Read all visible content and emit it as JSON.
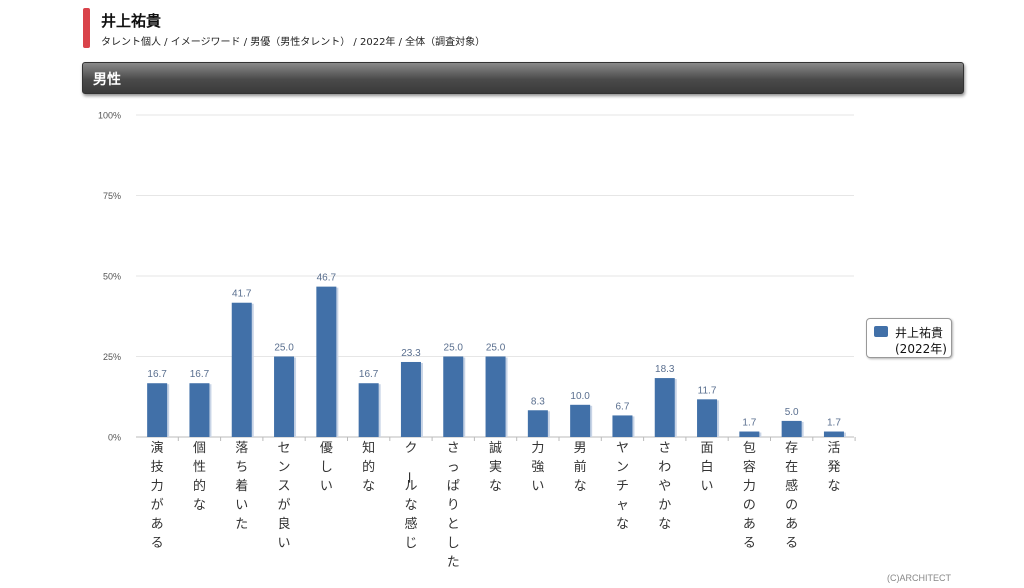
{
  "header": {
    "title": "井上祐貴",
    "subtitle": "タレント個人 / イメージワード / 男優（男性タレント） / 2022年 / 全体（調査対象）"
  },
  "section": {
    "title": "男性"
  },
  "legend": {
    "name": "井上祐貴",
    "year": "(2022年)"
  },
  "copyright": "(C)ARCHITECT",
  "chart_data": {
    "type": "bar",
    "categories": [
      "演技力がある",
      "個性的な",
      "落ち着いた",
      "センスが良い",
      "優しい",
      "知的な",
      "クールな感じ",
      "さっぱりとした",
      "誠実な",
      "力強い",
      "男前な",
      "ヤンチャな",
      "さわやかな",
      "面白い",
      "包容力のある",
      "存在感のある",
      "活発な"
    ],
    "series": [
      {
        "name": "井上祐貴 (2022年)",
        "values": [
          16.7,
          16.7,
          41.7,
          25.0,
          46.7,
          16.7,
          23.3,
          25.0,
          25.0,
          8.3,
          10.0,
          6.7,
          18.3,
          11.7,
          1.7,
          5.0,
          1.7
        ]
      }
    ],
    "yticks": [
      "0%",
      "25%",
      "50%",
      "75%",
      "100%"
    ],
    "ylim": [
      0,
      100
    ],
    "grid": true,
    "legend_position": "right",
    "colors": {
      "bar": "#4170a8",
      "bar_shadow": "#c8d4e6",
      "grid": "#e6e6e6",
      "axis": "#bbbbbb",
      "label": "#5a6f8f"
    }
  }
}
